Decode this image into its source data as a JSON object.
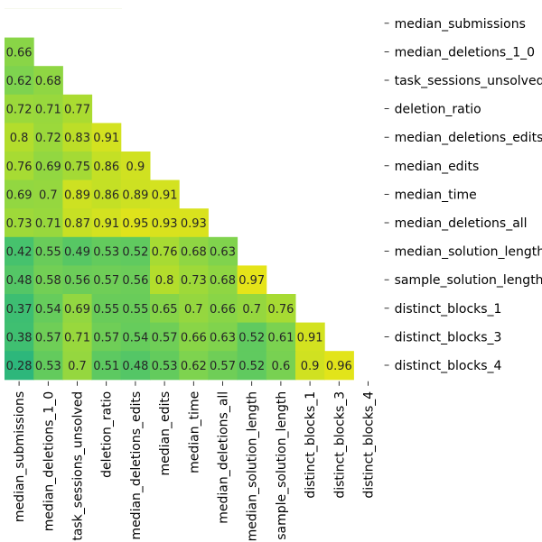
{
  "chart_data": {
    "type": "heatmap",
    "title": "",
    "xlabel": "",
    "ylabel": "",
    "variables": [
      "median_submissions",
      "median_deletions_1_0",
      "task_sessions_unsolved",
      "deletion_ratio",
      "median_deletions_edits",
      "median_edits",
      "median_time",
      "median_deletions_all",
      "median_solution_length",
      "sample_solution_length",
      "distinct_blocks_1",
      "distinct_blocks_3",
      "distinct_blocks_4"
    ],
    "mask": "upper-triangle-including-diagonal",
    "values": [
      [],
      [
        0.66
      ],
      [
        0.62,
        0.68
      ],
      [
        0.72,
        0.71,
        0.77
      ],
      [
        0.8,
        0.72,
        0.83,
        0.91
      ],
      [
        0.76,
        0.69,
        0.75,
        0.86,
        0.9
      ],
      [
        0.69,
        0.7,
        0.89,
        0.86,
        0.89,
        0.91
      ],
      [
        0.73,
        0.71,
        0.87,
        0.91,
        0.95,
        0.93,
        0.93
      ],
      [
        0.42,
        0.55,
        0.49,
        0.53,
        0.52,
        0.76,
        0.68,
        0.63
      ],
      [
        0.48,
        0.58,
        0.56,
        0.57,
        0.56,
        0.8,
        0.73,
        0.68,
        0.97
      ],
      [
        0.37,
        0.54,
        0.69,
        0.55,
        0.55,
        0.65,
        0.7,
        0.66,
        0.7,
        0.76
      ],
      [
        0.38,
        0.57,
        0.71,
        0.57,
        0.54,
        0.57,
        0.66,
        0.63,
        0.52,
        0.61,
        0.91
      ],
      [
        0.28,
        0.53,
        0.7,
        0.51,
        0.48,
        0.53,
        0.62,
        0.57,
        0.52,
        0.6,
        0.9,
        0.96
      ]
    ],
    "colormap": [
      "#2db77b",
      "#4cc46a",
      "#7fd34e",
      "#b2dd2c",
      "#e5e419"
    ],
    "colorbar": "none",
    "grid": false,
    "y_tick_side": "right",
    "x_tick_rotation": "vertical"
  }
}
